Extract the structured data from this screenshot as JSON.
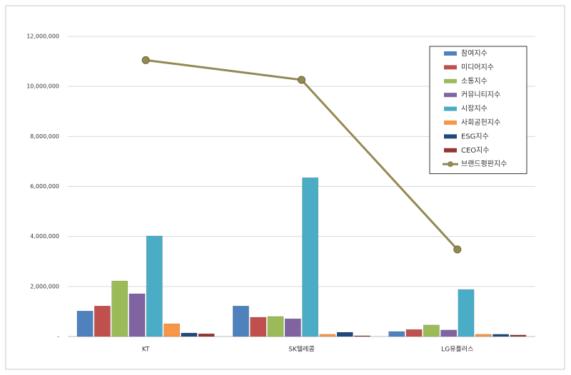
{
  "chart_data": {
    "type": "bar",
    "categories": [
      "KT",
      "SK텔레콤",
      "LG유플러스"
    ],
    "series": [
      {
        "name": "참여지수",
        "color": "#4f81bd",
        "values": [
          1020000,
          1220000,
          200000
        ]
      },
      {
        "name": "미디어지수",
        "color": "#c0504d",
        "values": [
          1220000,
          770000,
          280000
        ]
      },
      {
        "name": "소통지수",
        "color": "#9bbb59",
        "values": [
          2220000,
          800000,
          460000
        ]
      },
      {
        "name": "커뮤니티지수",
        "color": "#8064a2",
        "values": [
          1710000,
          710000,
          260000
        ]
      },
      {
        "name": "시장지수",
        "color": "#4bacc6",
        "values": [
          4020000,
          6350000,
          1880000
        ]
      },
      {
        "name": "사회공헌지수",
        "color": "#f79646",
        "values": [
          510000,
          90000,
          90000
        ]
      },
      {
        "name": "ESG지수",
        "color": "#1f497d",
        "values": [
          140000,
          170000,
          90000
        ]
      },
      {
        "name": "CEO지수",
        "color": "#943634",
        "values": [
          110000,
          30000,
          60000
        ]
      },
      {
        "name": "브랜드평판지수",
        "color": "#938953",
        "type": "line",
        "values": [
          11050000,
          10260000,
          3480000
        ]
      }
    ],
    "ylim": [
      0,
      12000000
    ],
    "yticks": [
      {
        "value": 0,
        "label": "-"
      },
      {
        "value": 2000000,
        "label": "2,000,000"
      },
      {
        "value": 4000000,
        "label": "4,000,000"
      },
      {
        "value": 6000000,
        "label": "6,000,000"
      },
      {
        "value": 8000000,
        "label": "8,000,000"
      },
      {
        "value": 10000000,
        "label": "10,000,000"
      },
      {
        "value": 12000000,
        "label": "12,000,000"
      }
    ],
    "grid": true,
    "legend": "right"
  }
}
